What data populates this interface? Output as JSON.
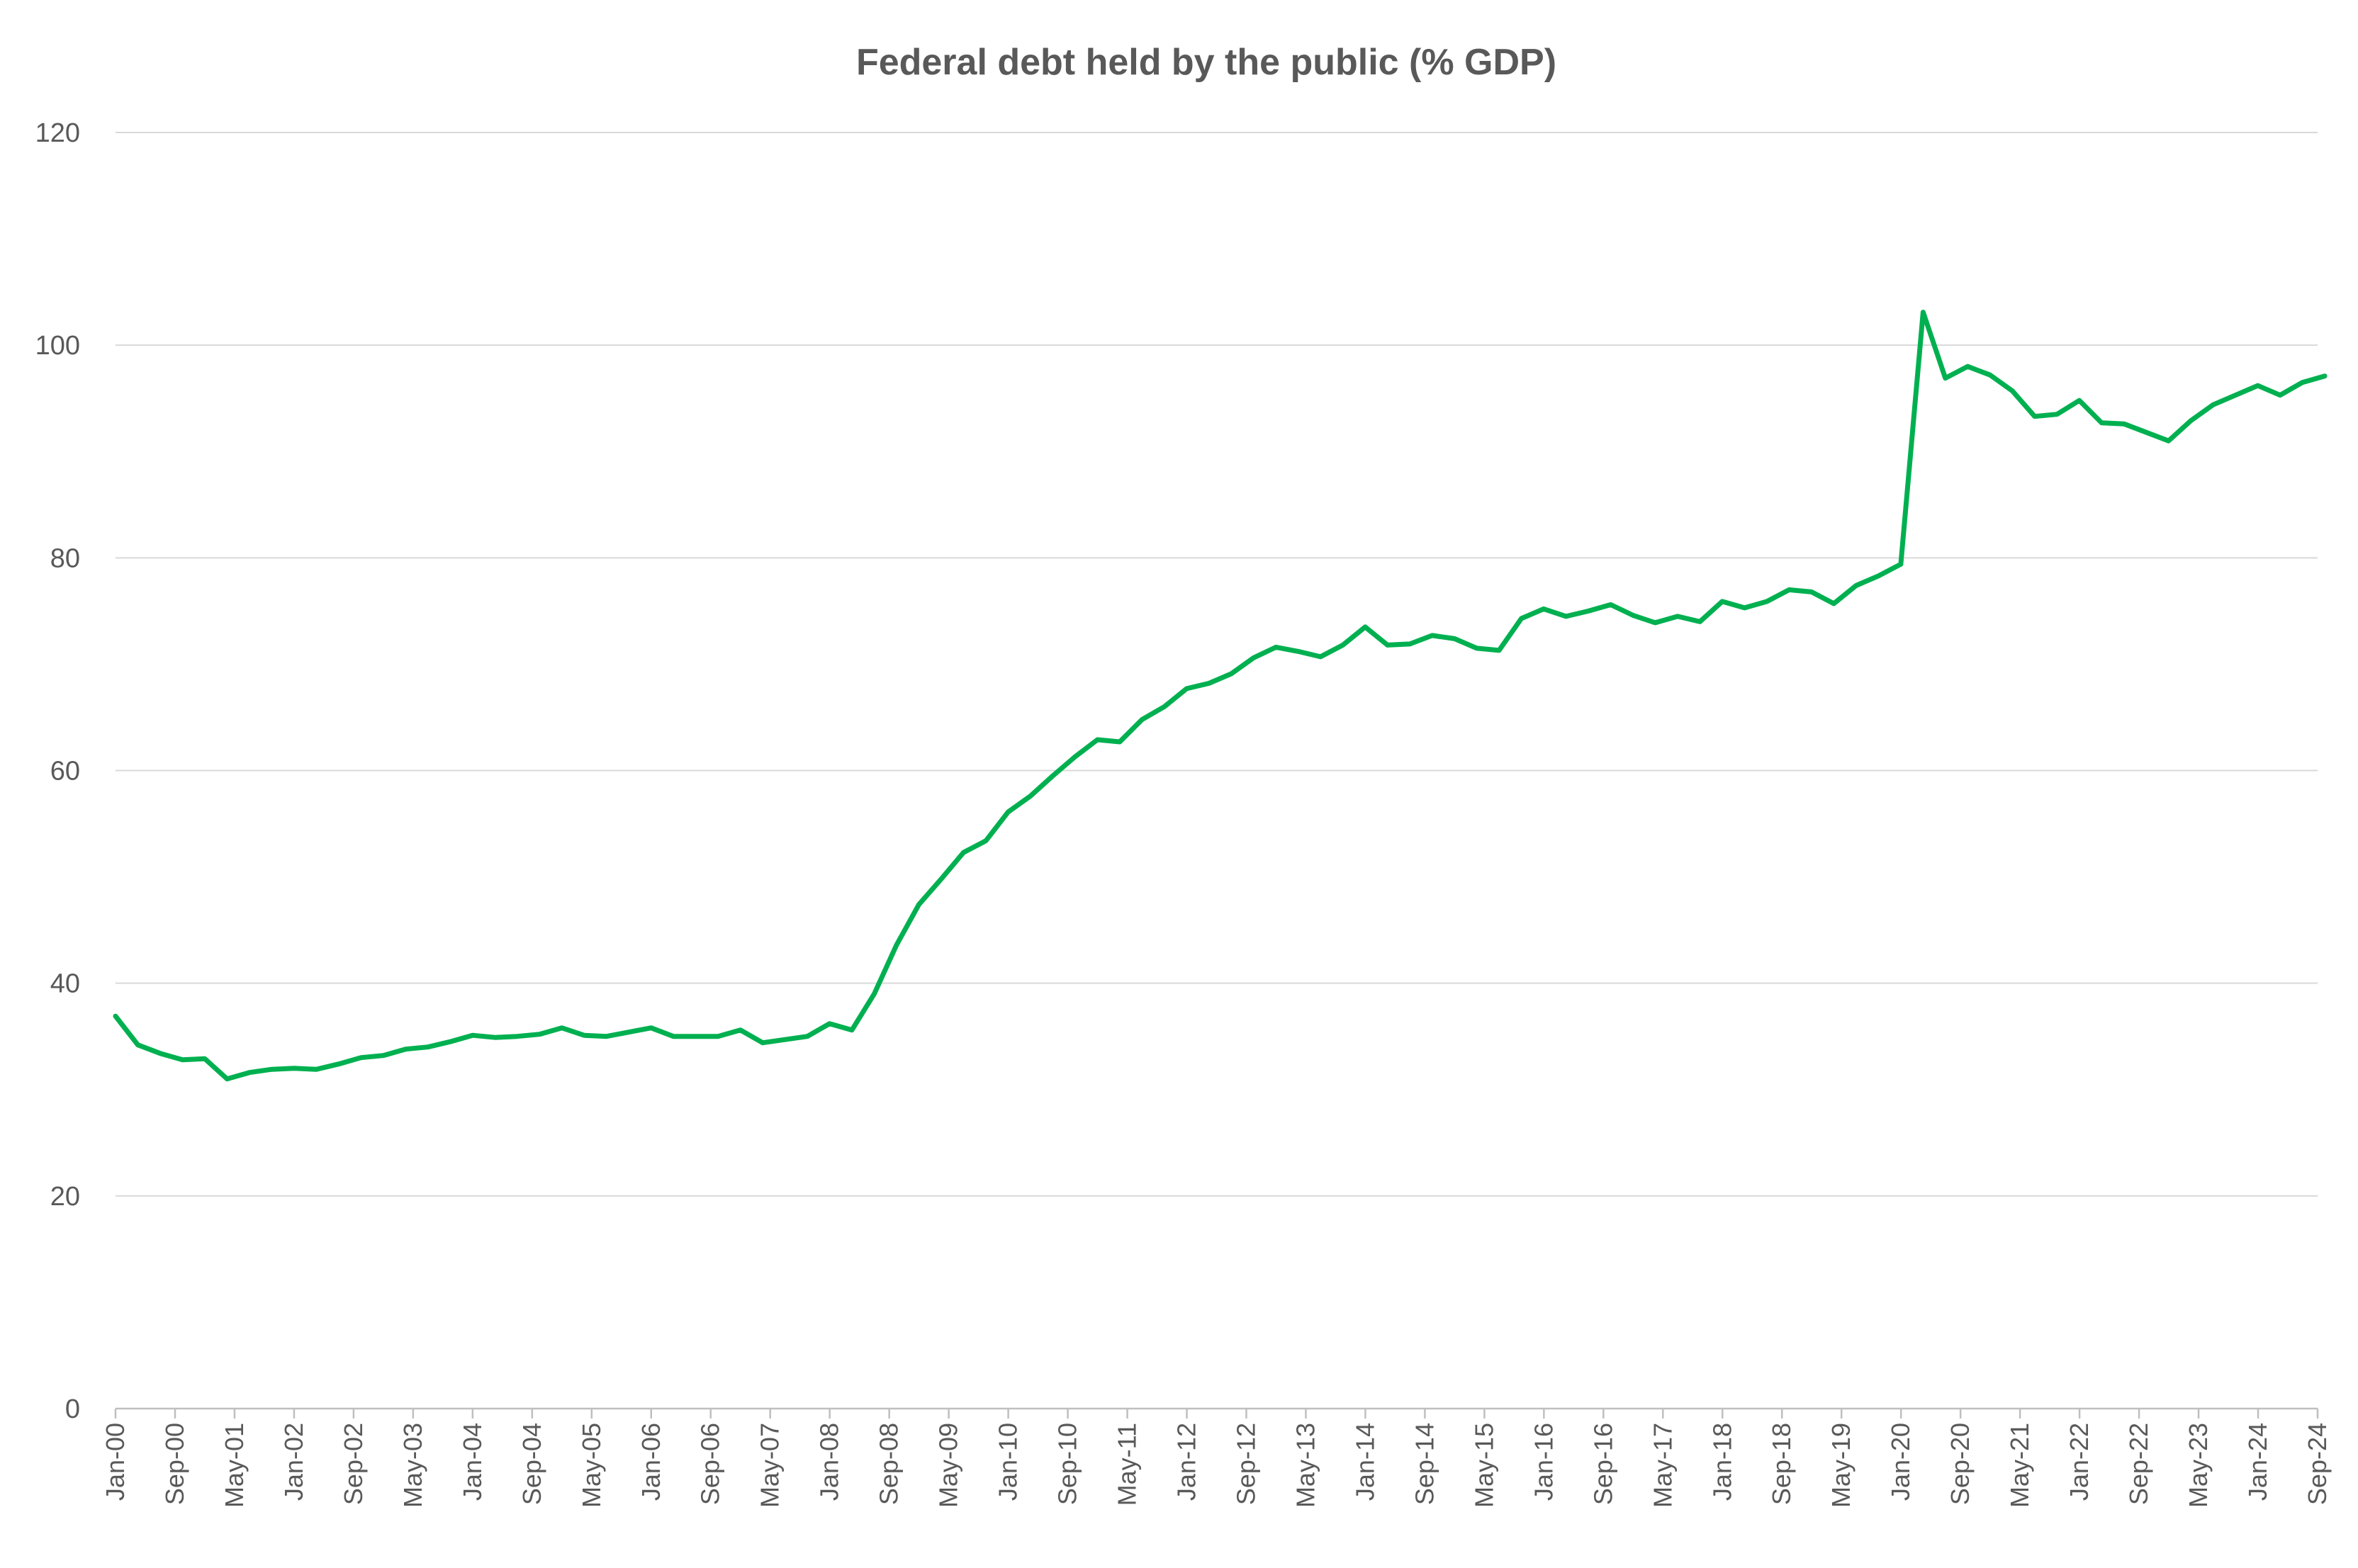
{
  "chart_data": {
    "type": "line",
    "title": "Federal debt held by the public (% GDP)",
    "xlabel": "",
    "ylabel": "",
    "ylim": [
      0,
      120
    ],
    "yticks": [
      0,
      20,
      40,
      60,
      80,
      100,
      120
    ],
    "grid": true,
    "legend": "none",
    "x_tick_labels": [
      "Jan-00",
      "Sep-00",
      "May-01",
      "Jan-02",
      "Sep-02",
      "May-03",
      "Jan-04",
      "Sep-04",
      "May-05",
      "Jan-06",
      "Sep-06",
      "May-07",
      "Jan-08",
      "Sep-08",
      "May-09",
      "Jan-10",
      "Sep-10",
      "May-11",
      "Jan-12",
      "Sep-12",
      "May-13",
      "Jan-14",
      "Sep-14",
      "May-15",
      "Jan-16",
      "Sep-16",
      "May-17",
      "Jan-18",
      "Sep-18",
      "May-19",
      "Jan-20",
      "Sep-20",
      "May-21",
      "Jan-22",
      "Sep-22",
      "May-23",
      "Jan-24",
      "Sep-24"
    ],
    "x_tick_step_quarters": 2.667,
    "series": [
      {
        "name": "Federal debt held by the public (% GDP)",
        "color": "#00b050",
        "frequency": "quarterly",
        "start": "Jan-00",
        "values": [
          36.9,
          34.2,
          33.4,
          32.8,
          32.9,
          31.0,
          31.6,
          31.9,
          32.0,
          31.9,
          32.4,
          33.0,
          33.2,
          33.8,
          34.0,
          34.5,
          35.1,
          34.9,
          35.0,
          35.2,
          35.8,
          35.1,
          35.0,
          35.4,
          35.8,
          35.0,
          35.0,
          35.0,
          35.6,
          34.4,
          34.7,
          35.0,
          36.2,
          35.6,
          39.0,
          43.6,
          47.4,
          49.8,
          52.3,
          53.4,
          56.1,
          57.6,
          59.5,
          61.3,
          62.9,
          62.7,
          64.8,
          66.0,
          67.7,
          68.2,
          69.1,
          70.6,
          71.6,
          71.2,
          70.7,
          71.8,
          73.5,
          71.8,
          71.9,
          72.7,
          72.4,
          71.5,
          71.3,
          74.3,
          75.2,
          74.5,
          75.0,
          75.6,
          74.6,
          73.9,
          74.5,
          74.0,
          75.9,
          75.3,
          75.9,
          77.0,
          76.8,
          75.7,
          77.4,
          78.3,
          79.4,
          103.1,
          96.9,
          98.0,
          97.2,
          95.7,
          93.3,
          93.5,
          94.8,
          92.7,
          92.6,
          91.8,
          91.0,
          92.9,
          94.4,
          95.3,
          96.2,
          95.3,
          96.5,
          97.1
        ]
      }
    ]
  }
}
